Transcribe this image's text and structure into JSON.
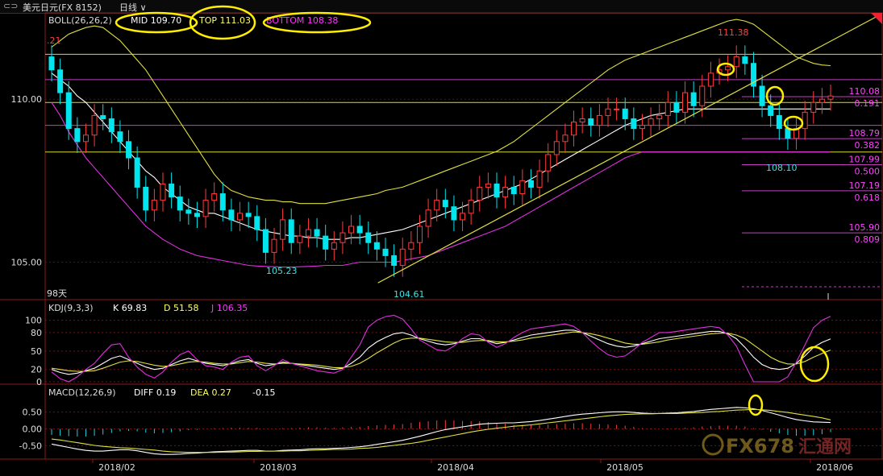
{
  "window": {
    "symbol": "美元日元(FX 8152)",
    "period": "日线"
  },
  "chart_data": [
    {
      "type": "candlestick",
      "indicator": "BOLL(26,26,2)",
      "legend": {
        "mid": "MID 109.70",
        "top": "TOP 111.03",
        "bottom": "BOTTOM 108.38"
      },
      "y_ticks": [
        "110.00",
        "105.00"
      ],
      "ylim": [
        103.9,
        112.6
      ],
      "x_ticks": [
        "2018/02",
        "2018/03",
        "2018/04",
        "2018/05",
        "2018/06"
      ],
      "period_count": "98天",
      "annotations": {
        "high_left": ".21",
        "low1": "105.23",
        "low2": "104.61",
        "high_right": "111.38",
        "low_right": "108.10"
      },
      "fib_levels": [
        {
          "price": 110.08,
          "label": "110.08",
          "ratio": "0.191"
        },
        {
          "price": 108.79,
          "label": "108.79",
          "ratio": "0.382"
        },
        {
          "price": 107.99,
          "label": "107.99",
          "ratio": "0.500"
        },
        {
          "price": 107.19,
          "label": "107.19",
          "ratio": "0.618"
        },
        {
          "price": 105.9,
          "label": "105.90",
          "ratio": "0.809"
        }
      ],
      "horizontal_lines": [
        111.38,
        110.6,
        109.9,
        109.2,
        108.38
      ],
      "trendline": {
        "from": [
          104.61
        ],
        "to": [
          112.6
        ]
      },
      "closes": [
        110.9,
        110.2,
        109.1,
        108.7,
        108.9,
        109.5,
        109.4,
        109.0,
        108.7,
        108.2,
        107.3,
        106.6,
        106.9,
        107.4,
        107.0,
        106.6,
        106.5,
        106.4,
        106.9,
        107.1,
        106.6,
        106.3,
        106.5,
        106.4,
        106.0,
        105.3,
        105.7,
        106.3,
        105.6,
        105.8,
        106.0,
        105.8,
        105.4,
        105.6,
        105.9,
        106.1,
        105.9,
        105.6,
        105.4,
        105.2,
        104.9,
        105.4,
        105.6,
        106.1,
        106.6,
        106.9,
        106.7,
        106.3,
        106.5,
        106.9,
        107.3,
        107.4,
        107.0,
        107.3,
        107.1,
        107.5,
        107.3,
        107.8,
        108.3,
        108.7,
        108.9,
        109.3,
        109.4,
        109.2,
        109.5,
        109.7,
        109.7,
        109.4,
        109.1,
        109.2,
        109.4,
        109.5,
        109.9,
        109.6,
        110.2,
        109.8,
        110.4,
        110.8,
        110.9,
        111.0,
        111.3,
        111.1,
        110.4,
        109.8,
        109.5,
        109.1,
        108.8,
        109.1,
        109.6,
        109.9,
        110.0,
        110.1
      ],
      "mid_line": [
        110.8,
        110.6,
        110.4,
        110.1,
        109.9,
        109.6,
        109.3,
        109.0,
        108.7,
        108.4,
        108.1,
        107.8,
        107.6,
        107.3,
        107.1,
        106.9,
        106.7,
        106.6,
        106.5,
        106.5,
        106.4,
        106.3,
        106.2,
        106.1,
        106.0,
        105.95,
        105.9,
        105.85,
        105.8,
        105.8,
        105.75,
        105.75,
        105.7,
        105.7,
        105.7,
        105.75,
        105.75,
        105.8,
        105.85,
        105.9,
        105.95,
        106.0,
        106.1,
        106.2,
        106.3,
        106.4,
        106.5,
        106.6,
        106.7,
        106.8,
        106.9,
        107.0,
        107.1,
        107.2,
        107.3,
        107.4,
        107.55,
        107.7,
        107.85,
        108.0,
        108.15,
        108.3,
        108.45,
        108.6,
        108.75,
        108.9,
        109.05,
        109.2,
        109.3,
        109.4,
        109.5,
        109.55,
        109.6,
        109.65,
        109.7,
        109.7,
        109.7,
        109.7,
        109.7,
        109.7,
        109.7,
        109.7,
        109.7,
        109.7,
        109.7,
        109.7,
        109.7,
        109.7,
        109.7,
        109.7,
        109.7,
        109.7
      ],
      "upper_line": [
        111.6,
        111.8,
        112.0,
        112.1,
        112.2,
        112.25,
        112.2,
        112.0,
        111.8,
        111.5,
        111.2,
        110.9,
        110.5,
        110.1,
        109.7,
        109.3,
        108.9,
        108.5,
        108.1,
        107.7,
        107.4,
        107.2,
        107.1,
        107.0,
        106.95,
        106.9,
        106.9,
        106.85,
        106.85,
        106.8,
        106.8,
        106.8,
        106.8,
        106.85,
        106.9,
        106.95,
        107.0,
        107.05,
        107.1,
        107.2,
        107.25,
        107.3,
        107.4,
        107.5,
        107.6,
        107.7,
        107.8,
        107.9,
        108.0,
        108.1,
        108.2,
        108.3,
        108.4,
        108.55,
        108.7,
        108.9,
        109.1,
        109.3,
        109.5,
        109.7,
        109.9,
        110.1,
        110.3,
        110.5,
        110.7,
        110.9,
        111.05,
        111.2,
        111.3,
        111.4,
        111.5,
        111.6,
        111.7,
        111.8,
        111.9,
        112.0,
        112.1,
        112.2,
        112.3,
        112.4,
        112.45,
        112.4,
        112.3,
        112.1,
        111.9,
        111.7,
        111.5,
        111.3,
        111.2,
        111.1,
        111.05,
        111.03
      ],
      "lower_line": [
        109.9,
        109.5,
        109.0,
        108.6,
        108.2,
        107.9,
        107.6,
        107.3,
        107.0,
        106.7,
        106.4,
        106.1,
        105.9,
        105.7,
        105.55,
        105.4,
        105.3,
        105.2,
        105.15,
        105.1,
        105.05,
        105.0,
        104.95,
        104.9,
        104.88,
        104.87,
        104.86,
        104.85,
        104.85,
        104.86,
        104.87,
        104.88,
        104.9,
        104.9,
        104.9,
        104.95,
        105.0,
        105.0,
        105.0,
        105.0,
        105.0,
        105.05,
        105.1,
        105.15,
        105.2,
        105.3,
        105.4,
        105.5,
        105.6,
        105.7,
        105.8,
        105.9,
        106.0,
        106.1,
        106.25,
        106.4,
        106.55,
        106.7,
        106.85,
        107.0,
        107.15,
        107.3,
        107.45,
        107.6,
        107.75,
        107.9,
        108.05,
        108.2,
        108.3,
        108.38,
        108.38,
        108.38,
        108.38,
        108.38,
        108.38,
        108.38,
        108.38,
        108.38,
        108.38,
        108.38,
        108.38,
        108.38,
        108.38,
        108.38,
        108.38,
        108.38,
        108.38,
        108.38,
        108.38,
        108.38,
        108.38,
        108.38
      ]
    },
    {
      "type": "line",
      "indicator": "KDJ(9,3,3)",
      "legend": {
        "k": "K 69.83",
        "d": "D 51.58",
        "j": "J 106.35"
      },
      "y_ticks": [
        "100",
        "80",
        "50",
        "20",
        "0"
      ],
      "ylim": [
        0,
        110
      ],
      "series": [
        {
          "key": "k",
          "values": [
            20,
            15,
            12,
            14,
            18,
            22,
            30,
            38,
            42,
            36,
            30,
            24,
            20,
            22,
            28,
            34,
            38,
            34,
            30,
            28,
            26,
            30,
            34,
            36,
            30,
            26,
            28,
            32,
            30,
            28,
            26,
            24,
            22,
            20,
            22,
            30,
            40,
            55,
            65,
            72,
            78,
            80,
            76,
            70,
            66,
            62,
            60,
            62,
            66,
            70,
            70,
            66,
            62,
            64,
            68,
            72,
            76,
            78,
            80,
            82,
            84,
            84,
            80,
            74,
            68,
            62,
            58,
            56,
            58,
            62,
            66,
            70,
            72,
            74,
            76,
            78,
            80,
            82,
            82,
            78,
            70,
            56,
            40,
            28,
            22,
            20,
            22,
            30,
            42,
            56,
            64,
            69.83
          ]
        },
        {
          "key": "d",
          "values": [
            22,
            20,
            18,
            17,
            17,
            18,
            22,
            27,
            32,
            34,
            33,
            30,
            27,
            25,
            26,
            29,
            32,
            33,
            32,
            30,
            29,
            29,
            31,
            33,
            32,
            30,
            29,
            30,
            30,
            29,
            28,
            27,
            25,
            23,
            23,
            25,
            30,
            38,
            47,
            55,
            63,
            69,
            71,
            71,
            69,
            67,
            65,
            64,
            64,
            66,
            67,
            67,
            65,
            65,
            66,
            68,
            71,
            73,
            75,
            77,
            79,
            81,
            80,
            78,
            75,
            71,
            67,
            63,
            61,
            61,
            63,
            65,
            68,
            70,
            72,
            74,
            76,
            78,
            79,
            79,
            76,
            70,
            60,
            50,
            40,
            33,
            29,
            29,
            33,
            40,
            46,
            51.58
          ]
        },
        {
          "key": "j",
          "values": [
            16,
            5,
            0,
            8,
            20,
            30,
            46,
            60,
            62,
            40,
            24,
            12,
            6,
            16,
            32,
            44,
            50,
            36,
            26,
            24,
            20,
            32,
            40,
            42,
            26,
            18,
            26,
            36,
            30,
            26,
            22,
            18,
            16,
            14,
            20,
            40,
            60,
            89,
            100,
            106,
            108,
            102,
            86,
            68,
            60,
            52,
            50,
            58,
            70,
            78,
            76,
            64,
            56,
            62,
            72,
            80,
            86,
            88,
            90,
            92,
            94,
            90,
            80,
            66,
            54,
            44,
            40,
            42,
            52,
            64,
            72,
            80,
            80,
            82,
            84,
            86,
            88,
            90,
            88,
            76,
            58,
            28,
            0,
            0,
            0,
            0,
            8,
            32,
            60,
            88,
            100,
            106.35
          ]
        }
      ]
    },
    {
      "type": "line",
      "indicator": "MACD(12,26,9)",
      "legend": {
        "diff": "DIFF 0.19",
        "dea": "DEA 0.27",
        "macd": "-0.15"
      },
      "y_ticks": [
        "0.50",
        "0.00",
        "-0.50"
      ],
      "ylim": [
        -0.85,
        0.9
      ],
      "series": [
        {
          "key": "diff",
          "values": [
            -0.45,
            -0.5,
            -0.55,
            -0.6,
            -0.64,
            -0.66,
            -0.66,
            -0.64,
            -0.62,
            -0.62,
            -0.65,
            -0.7,
            -0.74,
            -0.76,
            -0.76,
            -0.75,
            -0.73,
            -0.72,
            -0.7,
            -0.68,
            -0.67,
            -0.66,
            -0.65,
            -0.64,
            -0.64,
            -0.66,
            -0.66,
            -0.64,
            -0.63,
            -0.62,
            -0.6,
            -0.59,
            -0.59,
            -0.58,
            -0.57,
            -0.55,
            -0.53,
            -0.5,
            -0.46,
            -0.42,
            -0.38,
            -0.34,
            -0.28,
            -0.22,
            -0.15,
            -0.08,
            -0.02,
            0.02,
            0.06,
            0.1,
            0.14,
            0.16,
            0.17,
            0.18,
            0.18,
            0.2,
            0.22,
            0.25,
            0.29,
            0.33,
            0.37,
            0.41,
            0.44,
            0.46,
            0.48,
            0.5,
            0.51,
            0.51,
            0.49,
            0.47,
            0.46,
            0.46,
            0.47,
            0.48,
            0.5,
            0.52,
            0.55,
            0.58,
            0.6,
            0.62,
            0.64,
            0.63,
            0.6,
            0.55,
            0.48,
            0.41,
            0.34,
            0.28,
            0.24,
            0.21,
            0.2,
            0.19
          ]
        },
        {
          "key": "dea",
          "values": [
            -0.3,
            -0.33,
            -0.37,
            -0.41,
            -0.45,
            -0.49,
            -0.52,
            -0.54,
            -0.56,
            -0.57,
            -0.59,
            -0.61,
            -0.63,
            -0.66,
            -0.68,
            -0.69,
            -0.7,
            -0.7,
            -0.7,
            -0.7,
            -0.69,
            -0.69,
            -0.68,
            -0.67,
            -0.67,
            -0.66,
            -0.66,
            -0.66,
            -0.65,
            -0.65,
            -0.64,
            -0.63,
            -0.62,
            -0.61,
            -0.61,
            -0.6,
            -0.58,
            -0.57,
            -0.55,
            -0.52,
            -0.49,
            -0.46,
            -0.43,
            -0.39,
            -0.34,
            -0.29,
            -0.24,
            -0.19,
            -0.14,
            -0.09,
            -0.05,
            -0.01,
            0.02,
            0.05,
            0.08,
            0.1,
            0.12,
            0.15,
            0.18,
            0.21,
            0.24,
            0.27,
            0.3,
            0.33,
            0.36,
            0.39,
            0.41,
            0.43,
            0.44,
            0.45,
            0.45,
            0.46,
            0.46,
            0.46,
            0.47,
            0.48,
            0.49,
            0.51,
            0.52,
            0.54,
            0.56,
            0.57,
            0.58,
            0.57,
            0.55,
            0.52,
            0.49,
            0.45,
            0.41,
            0.37,
            0.33,
            0.27
          ]
        }
      ]
    }
  ]
}
